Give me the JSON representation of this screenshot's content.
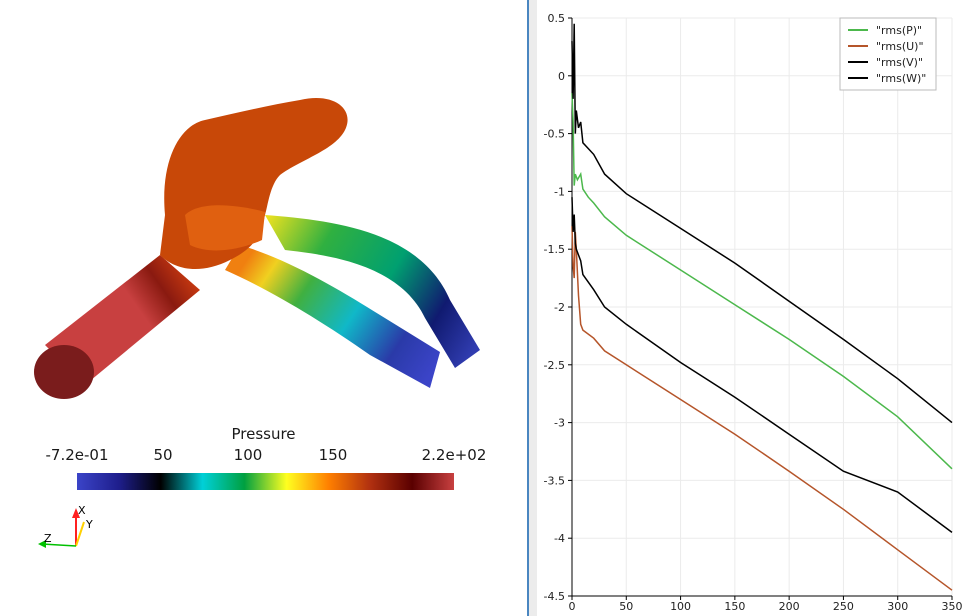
{
  "colors": {
    "divider": "#4a86c0",
    "grid": "#ebebeb",
    "axis": "#000000"
  },
  "render_view": {
    "scalar_bar": {
      "title": "Pressure",
      "labels": [
        "-7.2e-01",
        "50",
        "100",
        "150",
        "2.2e+02"
      ],
      "colormap": [
        "#3b44c8",
        "#1e1e8c",
        "#000000",
        "#00d0d8",
        "#00a040",
        "#ffff20",
        "#ff8000",
        "#b03010",
        "#5a0000",
        "#c84040"
      ]
    },
    "orientation_axes": {
      "labels": [
        "X",
        "Y",
        "Z"
      ],
      "colors": [
        "#ff2020",
        "#ffd000",
        "#00c000"
      ]
    }
  },
  "chart_data": {
    "type": "line",
    "xlim": [
      0,
      350
    ],
    "ylim": [
      -4.5,
      0.5
    ],
    "x_ticks": [
      0,
      50,
      100,
      150,
      200,
      250,
      300,
      350
    ],
    "y_ticks": [
      0.5,
      0,
      -0.5,
      -1,
      -1.5,
      -2,
      -2.5,
      -3,
      -3.5,
      -4,
      -4.5
    ],
    "grid": true,
    "legend_position": "top-right",
    "series": [
      {
        "name": "\"rms(P)\"",
        "color": "#4cb84c",
        "points": [
          [
            0,
            -0.15
          ],
          [
            1,
            -0.4
          ],
          [
            2,
            -0.95
          ],
          [
            3,
            -0.85
          ],
          [
            5,
            -0.9
          ],
          [
            8,
            -0.85
          ],
          [
            10,
            -0.98
          ],
          [
            15,
            -1.05
          ],
          [
            20,
            -1.1
          ],
          [
            30,
            -1.22
          ],
          [
            50,
            -1.38
          ],
          [
            100,
            -1.68
          ],
          [
            150,
            -1.98
          ],
          [
            200,
            -2.28
          ],
          [
            250,
            -2.6
          ],
          [
            300,
            -2.95
          ],
          [
            350,
            -3.4
          ]
        ]
      },
      {
        "name": "\"rms(U)\"",
        "color": "#b5552a",
        "points": [
          [
            0,
            -1.3
          ],
          [
            1,
            -1.65
          ],
          [
            2,
            -1.75
          ],
          [
            3,
            -1.35
          ],
          [
            4,
            -1.5
          ],
          [
            6,
            -1.9
          ],
          [
            8,
            -2.15
          ],
          [
            10,
            -2.2
          ],
          [
            20,
            -2.27
          ],
          [
            30,
            -2.38
          ],
          [
            50,
            -2.5
          ],
          [
            100,
            -2.8
          ],
          [
            150,
            -3.1
          ],
          [
            200,
            -3.42
          ],
          [
            250,
            -3.75
          ],
          [
            300,
            -4.1
          ],
          [
            350,
            -4.45
          ]
        ]
      },
      {
        "name": "\"rms(V)\"",
        "color": "#000000",
        "points": [
          [
            0,
            0.3
          ],
          [
            1,
            -0.2
          ],
          [
            2,
            0.45
          ],
          [
            3,
            -0.5
          ],
          [
            4,
            -0.3
          ],
          [
            6,
            -0.45
          ],
          [
            8,
            -0.4
          ],
          [
            10,
            -0.58
          ],
          [
            20,
            -0.68
          ],
          [
            30,
            -0.85
          ],
          [
            50,
            -1.02
          ],
          [
            100,
            -1.32
          ],
          [
            150,
            -1.62
          ],
          [
            200,
            -1.95
          ],
          [
            250,
            -2.28
          ],
          [
            300,
            -2.62
          ],
          [
            350,
            -3.0
          ]
        ]
      },
      {
        "name": "\"rms(W)\"",
        "color": "#000000",
        "points": [
          [
            0,
            -1.05
          ],
          [
            1,
            -1.35
          ],
          [
            2,
            -1.2
          ],
          [
            3,
            -1.45
          ],
          [
            4,
            -1.5
          ],
          [
            6,
            -1.55
          ],
          [
            8,
            -1.6
          ],
          [
            10,
            -1.72
          ],
          [
            20,
            -1.85
          ],
          [
            30,
            -2.0
          ],
          [
            50,
            -2.15
          ],
          [
            100,
            -2.48
          ],
          [
            150,
            -2.78
          ],
          [
            200,
            -3.1
          ],
          [
            250,
            -3.42
          ],
          [
            300,
            -3.6
          ],
          [
            350,
            -3.95
          ]
        ]
      }
    ]
  }
}
